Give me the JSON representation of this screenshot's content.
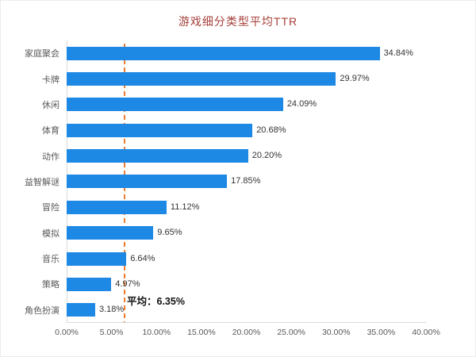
{
  "chart_data": {
    "type": "bar",
    "orientation": "horizontal",
    "title": "游戏细分类型平均TTR",
    "title_color": "#A6403A",
    "bar_color": "#1E88E5",
    "categories": [
      "家庭聚会",
      "卡牌",
      "休闲",
      "体育",
      "动作",
      "益智解谜",
      "冒险",
      "模拟",
      "音乐",
      "策略",
      "角色扮演"
    ],
    "values": [
      34.84,
      29.97,
      24.09,
      20.68,
      20.2,
      17.85,
      11.12,
      9.65,
      6.64,
      4.97,
      3.18
    ],
    "value_labels": [
      "34.84%",
      "29.97%",
      "24.09%",
      "20.68%",
      "20.20%",
      "17.85%",
      "11.12%",
      "9.65%",
      "6.64%",
      "4.97%",
      "3.18%"
    ],
    "x_ticks": [
      "0.00%",
      "5.00%",
      "10.00%",
      "15.00%",
      "20.00%",
      "25.00%",
      "30.00%",
      "35.00%",
      "40.00%"
    ],
    "xlim": [
      0,
      40
    ],
    "grid": false,
    "legend": "none",
    "average_line": {
      "value": 6.35,
      "label": "平均：6.35%",
      "color": "#ED7D31"
    }
  }
}
